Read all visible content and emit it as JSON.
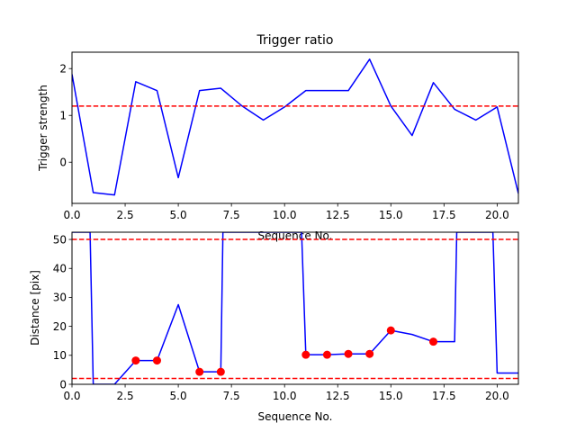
{
  "chart_data": [
    {
      "type": "line",
      "title": "Trigger ratio",
      "xlabel": "Sequence No.",
      "ylabel": "Trigger strength",
      "xlim": [
        0,
        21
      ],
      "ylim": [
        -0.88,
        2.35
      ],
      "x_ticks": [
        0.0,
        2.5,
        5.0,
        7.5,
        10.0,
        12.5,
        15.0,
        17.5,
        20.0
      ],
      "x_tick_labels": [
        "0.0",
        "2.5",
        "5.0",
        "7.5",
        "10.0",
        "12.5",
        "15.0",
        "17.5",
        "20.0"
      ],
      "y_ticks": [
        0,
        1,
        2
      ],
      "y_tick_labels": [
        "0",
        "1",
        "2"
      ],
      "grid": false,
      "series": [
        {
          "color": "#0000ff",
          "x": [
            0,
            1,
            2,
            3,
            4,
            5,
            6,
            7,
            8,
            9,
            10,
            11,
            12,
            13,
            14,
            15,
            16,
            17,
            18,
            19,
            20,
            21
          ],
          "y": [
            1.88,
            -0.65,
            -0.7,
            1.72,
            1.53,
            -0.33,
            1.53,
            1.58,
            1.2,
            0.9,
            1.18,
            1.53,
            1.53,
            1.53,
            2.2,
            1.2,
            0.57,
            1.7,
            1.13,
            0.9,
            1.18,
            -0.67
          ]
        }
      ],
      "hlines": [
        {
          "y": 1.2,
          "color": "#ff0000",
          "style": "dashed"
        }
      ]
    },
    {
      "type": "line",
      "title": "",
      "xlabel": "Sequence No.",
      "ylabel": "Distance [pix]",
      "xlim": [
        0,
        21
      ],
      "ylim": [
        0,
        52.5
      ],
      "x_ticks": [
        0.0,
        2.5,
        5.0,
        7.5,
        10.0,
        12.5,
        15.0,
        17.5,
        20.0
      ],
      "x_tick_labels": [
        "0.0",
        "2.5",
        "5.0",
        "7.5",
        "10.0",
        "12.5",
        "15.0",
        "17.5",
        "20.0"
      ],
      "y_ticks": [
        0,
        10,
        20,
        30,
        40,
        50
      ],
      "y_tick_labels": [
        "0",
        "10",
        "20",
        "30",
        "40",
        "50"
      ],
      "grid": false,
      "series": [
        {
          "color": "#0000ff",
          "x": [
            0,
            0.85,
            1,
            2,
            3,
            4,
            5,
            6,
            7,
            7.1,
            10.8,
            11,
            12,
            13,
            14,
            15,
            16,
            17,
            18,
            18.1,
            19.8,
            20,
            21
          ],
          "y": [
            52.5,
            52.5,
            0,
            0,
            8.2,
            8.2,
            27.5,
            4.3,
            4.3,
            52.5,
            52.5,
            10.2,
            10.2,
            10.5,
            10.5,
            18.6,
            17.2,
            14.7,
            14.7,
            52.5,
            52.5,
            3.9,
            3.9
          ]
        }
      ],
      "markers": {
        "color": "#ff0000",
        "x": [
          3,
          4,
          6,
          7,
          11,
          12,
          13,
          14,
          15,
          17
        ],
        "y": [
          8.2,
          8.2,
          4.3,
          4.3,
          10.2,
          10.2,
          10.5,
          10.5,
          18.6,
          14.7
        ]
      },
      "hlines": [
        {
          "y": 50,
          "color": "#ff0000",
          "style": "dashed"
        },
        {
          "y": 2,
          "color": "#ff0000",
          "style": "dashed"
        }
      ]
    }
  ]
}
